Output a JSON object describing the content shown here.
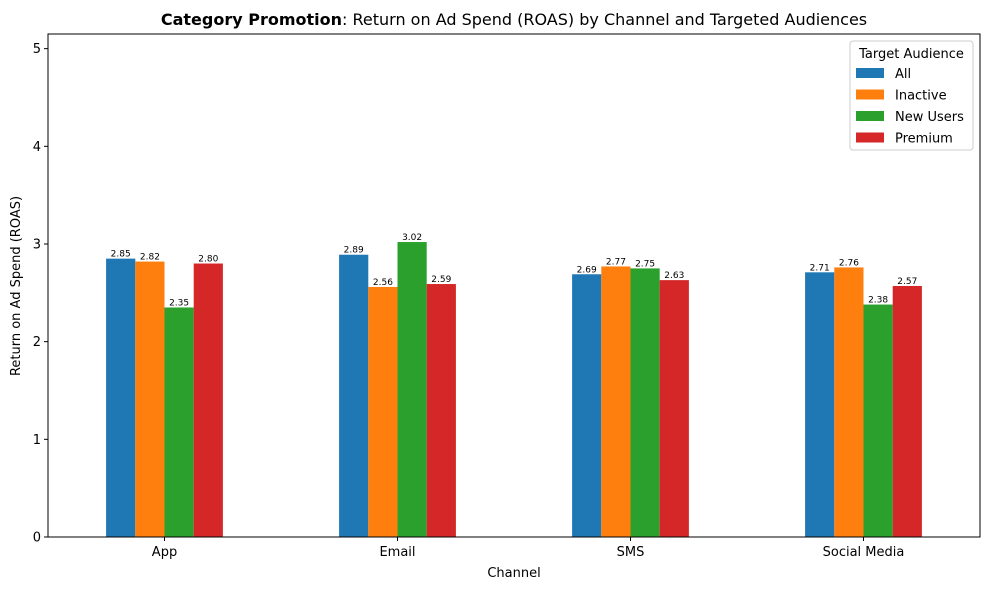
{
  "chart_data": {
    "type": "bar",
    "title_bold": "Category Promotion",
    "title_rest": ": Return on Ad Spend (ROAS) by Channel and Targeted Audiences",
    "xlabel": "Channel",
    "ylabel": "Return on Ad Spend (ROAS)",
    "ylim": [
      0,
      5.15
    ],
    "yticks": [
      0,
      1,
      2,
      3,
      4,
      5
    ],
    "categories": [
      "App",
      "Email",
      "SMS",
      "Social Media"
    ],
    "series": [
      {
        "name": "All",
        "color": "#1f77b4",
        "values": [
          2.85,
          2.89,
          2.69,
          2.71
        ],
        "labels": [
          "2.85",
          "2.89",
          "2.69",
          "2.71"
        ]
      },
      {
        "name": "Inactive",
        "color": "#ff7f0e",
        "values": [
          2.82,
          2.56,
          2.77,
          2.76
        ],
        "labels": [
          "2.82",
          "2.56",
          "2.77",
          "2.76"
        ]
      },
      {
        "name": "New Users",
        "color": "#2ca02c",
        "values": [
          2.35,
          3.02,
          2.75,
          2.38
        ],
        "labels": [
          "2.35",
          "3.02",
          "2.75",
          "2.38"
        ]
      },
      {
        "name": "Premium",
        "color": "#d62728",
        "values": [
          2.8,
          2.59,
          2.63,
          2.57
        ],
        "labels": [
          "2.80",
          "2.59",
          "2.63",
          "2.57"
        ]
      }
    ],
    "legend": {
      "title": "Target Audience",
      "placement": "top-right"
    },
    "grid": false
  }
}
